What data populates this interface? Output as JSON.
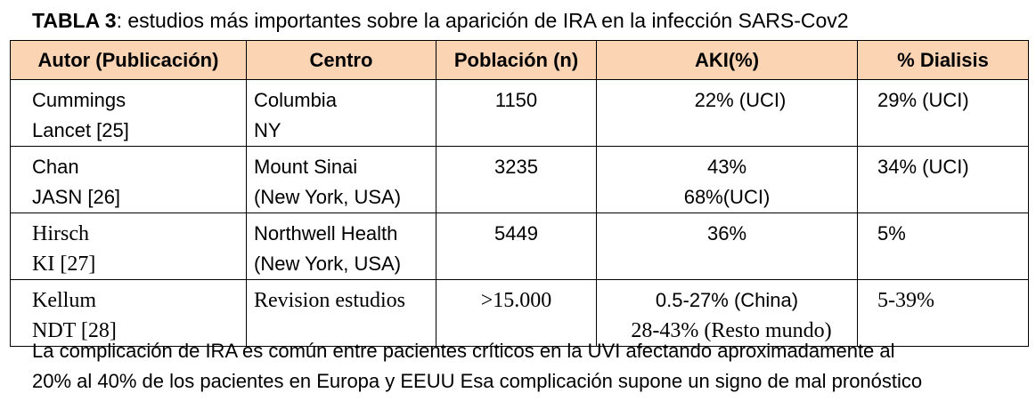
{
  "caption": {
    "label": "TABLA 3",
    "text": ": estudios más importantes sobre la aparición de IRA en la infección SARS-Cov2"
  },
  "table": {
    "headers": [
      "Autor (Publicación)",
      "Centro",
      "Población (n)",
      "AKI(%)",
      "% Dialisis"
    ],
    "rows": [
      {
        "author": [
          "Cummings",
          "Lancet [25]"
        ],
        "center": [
          "Columbia",
          "NY"
        ],
        "population": "1150",
        "aki": [
          "22% (UCI)"
        ],
        "dialysis": "29% (UCI)"
      },
      {
        "author": [
          "Chan",
          "JASN [26]"
        ],
        "center": [
          "Mount Sinai",
          "(New York, USA)"
        ],
        "population": "3235",
        "aki": [
          "43%",
          "68%(UCI)"
        ],
        "dialysis": "34% (UCI)"
      },
      {
        "author": [
          "Hirsch",
          "KI [27]"
        ],
        "center": [
          "Northwell Health",
          "(New York, USA)"
        ],
        "population": "5449",
        "aki": [
          "36%"
        ],
        "dialysis": "5%"
      },
      {
        "author": [
          "Kellum",
          "NDT [28]"
        ],
        "center": [
          "Revision estudios"
        ],
        "population": ">15.000",
        "aki": [
          "0.5-27% (China)",
          "28-43% (Resto mundo)"
        ],
        "dialysis": "5-39%"
      }
    ]
  },
  "footer": {
    "lines": [
      "La complicación de IRA es común entre pacientes críticos en la UVI afectando   aproximadamente al",
      "20% al 40% de los pacientes en Europa y EEUU Esa complicación supone un signo de mal pronóstico"
    ]
  },
  "colors": {
    "header_background": "#fbd4b4",
    "border": "#000000",
    "text": "#000000"
  }
}
